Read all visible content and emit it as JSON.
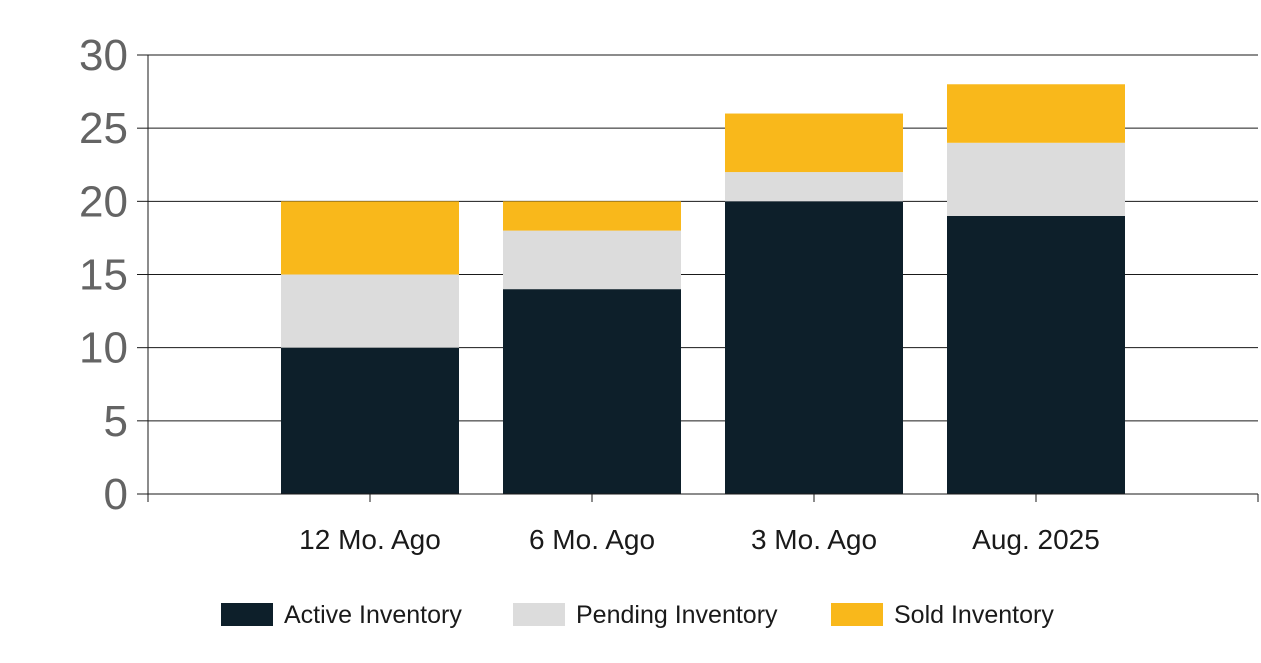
{
  "chart_data": {
    "type": "bar",
    "stacked": true,
    "categories": [
      "12 Mo. Ago",
      "6 Mo. Ago",
      "3 Mo. Ago",
      "Aug. 2025"
    ],
    "series": [
      {
        "name": "Active Inventory",
        "color": "#0d1f2a",
        "values": [
          10,
          14,
          20,
          19
        ]
      },
      {
        "name": "Pending Inventory",
        "color": "#dcdcdc",
        "values": [
          5,
          4,
          2,
          5
        ]
      },
      {
        "name": "Sold Inventory",
        "color": "#f9b81b",
        "values": [
          5,
          2,
          4,
          4
        ]
      }
    ],
    "ylim": [
      0,
      30
    ],
    "yticks": [
      0,
      5,
      10,
      15,
      20,
      25,
      30
    ],
    "grid": true,
    "legend_position": "bottom"
  }
}
